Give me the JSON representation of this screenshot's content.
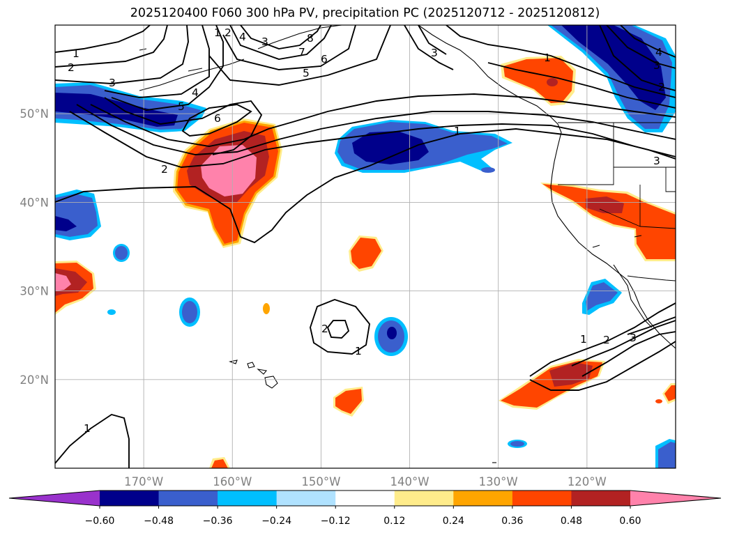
{
  "title": "2025120400 F060 300 hPa PV, precipitation PC (2025120712 - 2025120812)",
  "map": {
    "lon_range": [
      -180,
      -110
    ],
    "lat_range": [
      10,
      60
    ],
    "lat_ticks": [
      {
        "value": 50,
        "label": "50°N"
      },
      {
        "value": 40,
        "label": "40°N"
      },
      {
        "value": 30,
        "label": "30°N"
      },
      {
        "value": 20,
        "label": "20°N"
      }
    ],
    "lon_ticks": [
      {
        "value": -170,
        "label": "170°W"
      },
      {
        "value": -160,
        "label": "160°W"
      },
      {
        "value": -150,
        "label": "150°W"
      },
      {
        "value": -140,
        "label": "140°W"
      },
      {
        "value": -130,
        "label": "130°W"
      },
      {
        "value": -120,
        "label": "120°W"
      }
    ],
    "gridlines": true
  },
  "colorbar": {
    "levels": [
      "-0.60",
      "-0.48",
      "-0.36",
      "-0.24",
      "-0.12",
      "0.12",
      "0.24",
      "0.36",
      "0.48",
      "0.60"
    ],
    "colors": [
      "#9932cc",
      "#00008b",
      "#3a5fcd",
      "#00bfff",
      "#b0e2ff",
      "#ffffff",
      "#ffec8b",
      "#ffa500",
      "#ff4500",
      "#b22222",
      "#ff82ab"
    ],
    "extend": "both"
  },
  "contour_labels": [
    "1",
    "2",
    "3",
    "4",
    "5",
    "6",
    "7",
    "8",
    "6",
    "5",
    "4",
    "3",
    "2",
    "1",
    "1",
    "2",
    "3",
    "3",
    "4",
    "3",
    "2",
    "1",
    "1",
    "2",
    "3",
    "1",
    "2",
    "1"
  ]
}
